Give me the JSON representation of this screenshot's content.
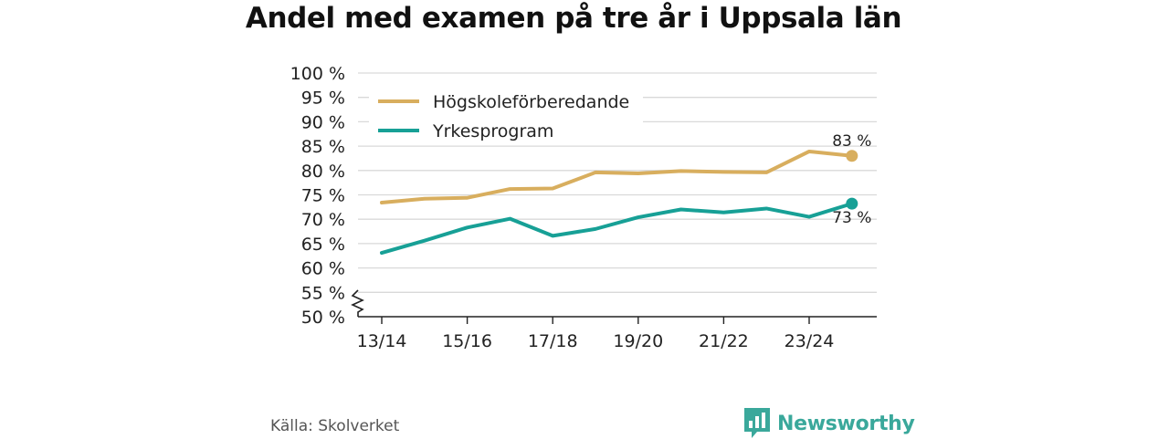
{
  "chart_data": {
    "type": "line",
    "title": "Andel med examen på tre år i Uppsala län",
    "xlabel": "",
    "ylabel": "",
    "x": [
      "13/14",
      "14/15",
      "15/16",
      "16/17",
      "17/18",
      "18/19",
      "19/20",
      "20/21",
      "21/22",
      "22/23",
      "23/24",
      "24/25"
    ],
    "x_tick_labels": [
      "13/14",
      "15/16",
      "17/18",
      "19/20",
      "21/22",
      "23/24"
    ],
    "ylim": [
      50,
      100
    ],
    "y_ticks": [
      50,
      55,
      60,
      65,
      70,
      75,
      80,
      85,
      90,
      95,
      100
    ],
    "y_tick_suffix": " %",
    "y_axis_break": true,
    "grid": true,
    "legend_position": "top-left",
    "series": [
      {
        "name": "Högskoleförberedande",
        "color": "#d8ae5e",
        "values": [
          73.4,
          74.2,
          74.4,
          76.2,
          76.3,
          79.6,
          79.4,
          79.9,
          79.7,
          79.6,
          83.9,
          83.0
        ],
        "end_label": "83 %"
      },
      {
        "name": "Yrkesprogram",
        "color": "#17a096",
        "values": [
          63.1,
          65.6,
          68.3,
          70.1,
          66.6,
          68.0,
          70.4,
          72.0,
          71.4,
          72.2,
          70.5,
          73.2
        ],
        "end_label": "73 %"
      }
    ]
  },
  "footer": {
    "source": "Källa: Skolverket",
    "brand": "Newsworthy",
    "brand_color": "#3aa89b",
    "brand_icon": "bar-chart-speech-icon"
  }
}
